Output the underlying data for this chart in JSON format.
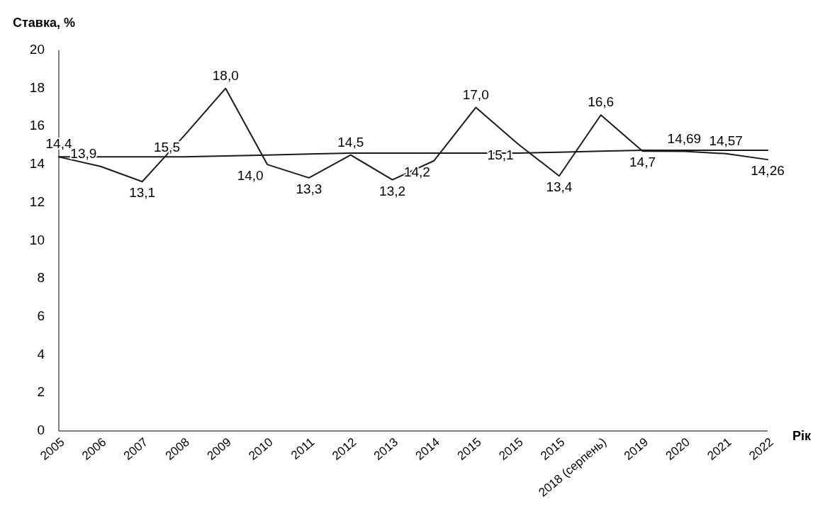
{
  "chart_data": {
    "type": "line",
    "ylabel": "Ставка, %",
    "xlabel": "Рік",
    "categories": [
      "2005",
      "2006",
      "2007",
      "2008",
      "2009",
      "2010",
      "2011",
      "2012",
      "2013",
      "2014",
      "2015",
      "2015",
      "2015",
      "2018 (серпень)",
      "2019",
      "2020",
      "2021",
      "2022"
    ],
    "series": [
      {
        "color": "#1a1a1a",
        "values": [
          14.4,
          13.9,
          13.1,
          15.5,
          18.0,
          14.0,
          13.3,
          14.5,
          13.2,
          14.2,
          17.0,
          15.1,
          13.4,
          16.6,
          14.7,
          14.69,
          14.57,
          14.26
        ],
        "value_labels": [
          "14,4",
          "13,9",
          "13,1",
          "15,5",
          "18,0",
          "14,0",
          "13,3",
          "14,5",
          "13,2",
          "14,2",
          "17,0",
          "15,1",
          "13,4",
          "16,6",
          "14,7",
          "14,69",
          "14,57",
          "14,26"
        ]
      },
      {
        "color": "#1a1a1a",
        "values": [
          14.4,
          14.4,
          14.4,
          14.4,
          14.45,
          14.5,
          14.55,
          14.6,
          14.6,
          14.6,
          14.6,
          14.6,
          14.65,
          14.7,
          14.75,
          14.75,
          14.75,
          14.75
        ]
      }
    ],
    "ylim": [
      0,
      20
    ],
    "yticks": [
      0,
      2,
      4,
      6,
      8,
      10,
      12,
      14,
      16,
      18,
      20
    ],
    "grid": false,
    "marker": "none",
    "line_style": "solid"
  }
}
